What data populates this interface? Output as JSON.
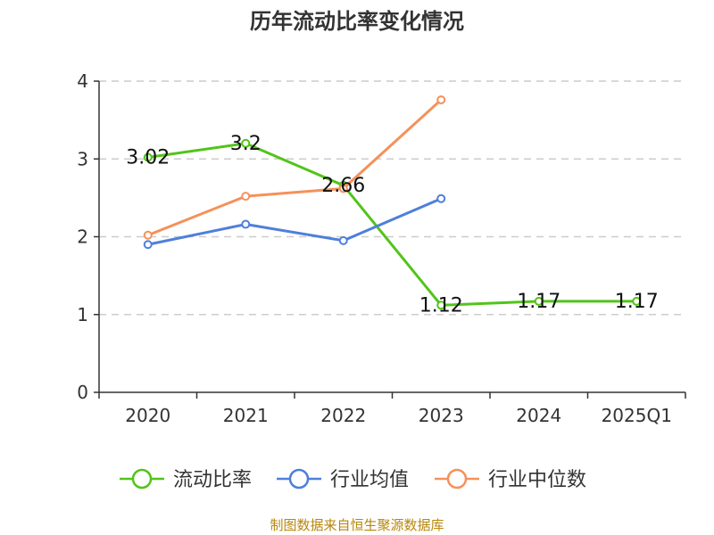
{
  "chart_data": {
    "type": "line",
    "title": "历年流动比率变化情况",
    "categories": [
      "2020",
      "2021",
      "2022",
      "2023",
      "2024",
      "2025Q1"
    ],
    "ylim": [
      0,
      4
    ],
    "yticks": [
      "0",
      "1",
      "2",
      "3",
      "4"
    ],
    "grid": true,
    "legend_position": "bottom",
    "series": [
      {
        "name": "流动比率",
        "color": "#52c41a",
        "values": [
          3.02,
          3.2,
          2.66,
          1.12,
          1.17,
          1.17
        ],
        "labels": [
          "3.02",
          "3.2",
          "2.66",
          "1.12",
          "1.17",
          "1.17"
        ]
      },
      {
        "name": "行业均值",
        "color": "#4e7fdb",
        "values": [
          1.9,
          2.16,
          1.95,
          2.49,
          null,
          null
        ]
      },
      {
        "name": "行业中位数",
        "color": "#f5915a",
        "values": [
          2.02,
          2.52,
          2.62,
          3.76,
          null,
          null
        ]
      }
    ]
  },
  "source_text": "制图数据来自恒生聚源数据库"
}
